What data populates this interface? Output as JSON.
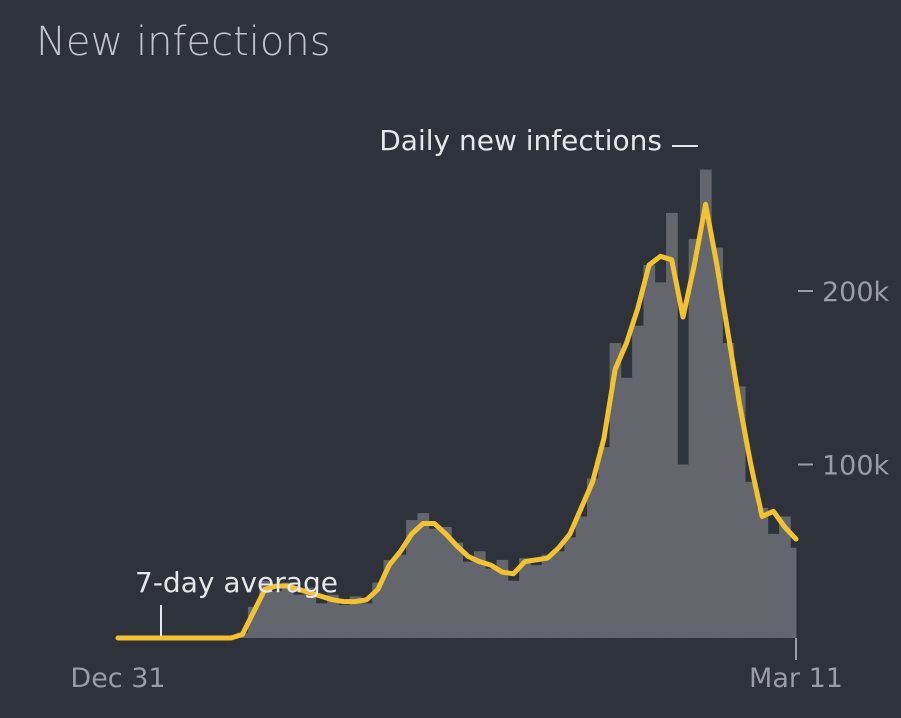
{
  "chart_data": {
    "type": "area-line",
    "title": "New infections",
    "categories": [
      "Dec 31",
      null,
      null,
      null,
      null,
      null,
      null,
      null,
      null,
      null,
      null,
      null,
      null,
      null,
      null,
      null,
      null,
      null,
      null,
      null,
      null,
      null,
      null,
      null,
      null,
      null,
      null,
      null,
      null,
      null,
      null,
      null,
      null,
      null,
      null,
      null,
      null,
      null,
      null,
      null,
      null,
      null,
      null,
      null,
      null,
      null,
      null,
      null,
      null,
      null,
      null,
      null,
      null,
      null,
      null,
      null,
      null,
      null,
      null,
      null,
      "Mar 11"
    ],
    "series": [
      {
        "name": "Daily new infections",
        "color": "#63666d",
        "values": [
          0,
          0,
          0,
          0,
          0,
          0,
          0,
          0,
          0,
          0,
          0,
          3000,
          18000,
          33000,
          27000,
          32000,
          25000,
          29000,
          20000,
          25000,
          19000,
          24000,
          20000,
          32000,
          45000,
          48000,
          68000,
          72000,
          63000,
          64000,
          55000,
          44000,
          50000,
          40000,
          45000,
          33000,
          46000,
          42000,
          48000,
          50000,
          58000,
          70000,
          92000,
          110000,
          170000,
          150000,
          180000,
          215000,
          205000,
          245000,
          100000,
          230000,
          270000,
          225000,
          170000,
          145000,
          90000,
          75000,
          60000,
          70000,
          52000
        ]
      },
      {
        "name": "7-day average",
        "color": "#f2c230",
        "values": [
          0,
          0,
          0,
          0,
          0,
          0,
          0,
          0,
          0,
          0,
          0,
          2000,
          15000,
          28000,
          30000,
          30000,
          28000,
          26000,
          24000,
          22000,
          21000,
          21000,
          22000,
          28000,
          42000,
          50000,
          60000,
          66000,
          66000,
          60000,
          53000,
          47000,
          44000,
          42000,
          38000,
          37000,
          44000,
          45000,
          46000,
          52000,
          60000,
          75000,
          90000,
          115000,
          155000,
          170000,
          190000,
          215000,
          220000,
          218000,
          185000,
          215000,
          250000,
          215000,
          175000,
          135000,
          100000,
          70000,
          73000,
          64000,
          57000
        ]
      }
    ],
    "ylim": [
      0,
      300000
    ],
    "yticks": [
      {
        "value": 100000,
        "label": "100k"
      },
      {
        "value": 200000,
        "label": "200k"
      }
    ]
  }
}
